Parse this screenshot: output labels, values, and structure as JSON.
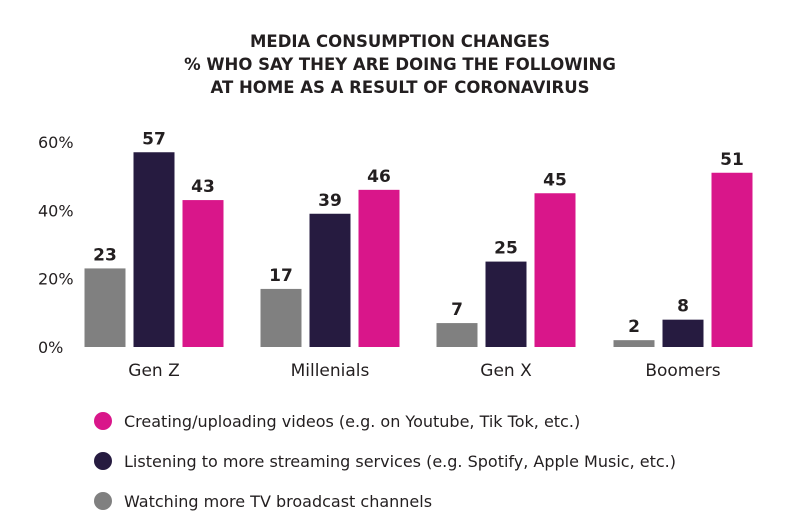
{
  "title_lines": [
    "MEDIA CONSUMPTION CHANGES",
    "% WHO SAY THEY ARE DOING THE FOLLOWING",
    "AT HOME AS A RESULT OF CORONAVIRUS"
  ],
  "chart_data": {
    "type": "bar",
    "categories": [
      "Gen Z",
      "Millenials",
      "Gen X",
      "Boomers"
    ],
    "series": [
      {
        "name": "Watching more TV broadcast channels",
        "color": "#808080",
        "values": [
          23,
          17,
          7,
          2
        ]
      },
      {
        "name": "Listening to more streaming services (e.g. Spotify, Apple Music, etc.)",
        "color": "#261b40",
        "values": [
          57,
          39,
          25,
          8
        ]
      },
      {
        "name": "Creating/uploading videos (e.g. on Youtube, Tik Tok, etc.)",
        "color": "#d9168a",
        "values": [
          43,
          46,
          45,
          51
        ]
      }
    ],
    "yticks": [
      "0%",
      "20%",
      "40%",
      "60%"
    ],
    "ylim": [
      0,
      60
    ],
    "grid": false,
    "legend_position": "bottom-left",
    "data_labels": true
  },
  "legend": [
    {
      "label": "Creating/uploading videos (e.g. on Youtube, Tik Tok, etc.)",
      "color": "#d9168a"
    },
    {
      "label": "Listening to more streaming services (e.g. Spotify, Apple Music, etc.)",
      "color": "#261b40"
    },
    {
      "label": "Watching more TV broadcast channels",
      "color": "#808080"
    }
  ]
}
